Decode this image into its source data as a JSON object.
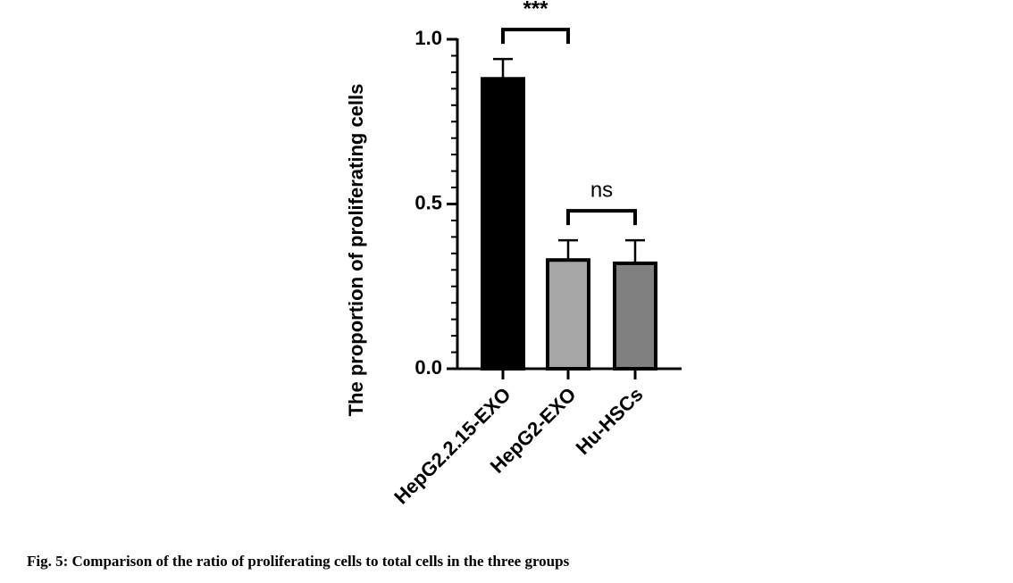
{
  "chart_data": {
    "type": "bar",
    "y_label": "The proportion of proliferating cells",
    "categories": [
      "HepG2.2.15-EXO",
      "HepG2-EXO",
      "Hu-HSCs"
    ],
    "values": [
      0.88,
      0.33,
      0.32
    ],
    "errors": [
      0.06,
      0.06,
      0.07
    ],
    "colors": [
      "#000000",
      "#a6a6a6",
      "#808080"
    ],
    "ylim": [
      0,
      1
    ],
    "yticks": [
      {
        "value": 0,
        "label": "0.0"
      },
      {
        "value": 0.5,
        "label": "0.5"
      },
      {
        "value": 1,
        "label": "1.0"
      }
    ],
    "yminor_ticks": [
      0.05,
      0.1,
      0.15,
      0.2,
      0.25,
      0.3,
      0.35,
      0.4,
      0.45,
      0.55,
      0.6,
      0.65,
      0.7,
      0.75,
      0.8,
      0.85,
      0.9,
      0.95
    ],
    "annotations": [
      {
        "text": "***",
        "from": 0,
        "to": 1
      },
      {
        "text": "ns",
        "from": 1,
        "to": 2
      }
    ]
  },
  "caption": "Fig. 5: Comparison of the ratio of proliferating cells to total cells in the three groups"
}
